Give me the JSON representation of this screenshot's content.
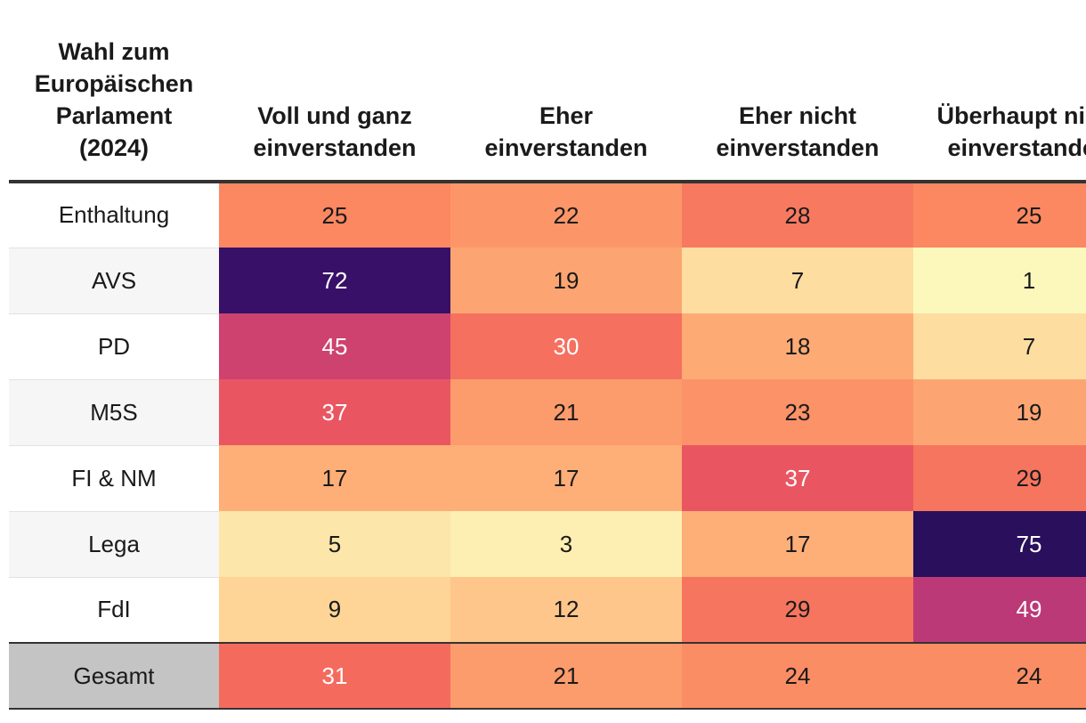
{
  "chart_data": {
    "type": "table",
    "subtype": "heatmap",
    "row_header": "Wahl zum Europäischen Parlament (2024)",
    "columns": [
      "Voll und ganz einverstanden",
      "Eher einverstanden",
      "Eher nicht einverstanden",
      "Überhaupt nicht einverstanden"
    ],
    "rows": [
      {
        "label": "Enthaltung",
        "values": [
          25,
          22,
          28,
          25
        ]
      },
      {
        "label": "AVS",
        "values": [
          72,
          19,
          7,
          1
        ]
      },
      {
        "label": "PD",
        "values": [
          45,
          30,
          18,
          7
        ]
      },
      {
        "label": "M5S",
        "values": [
          37,
          21,
          23,
          19
        ]
      },
      {
        "label": "FI & NM",
        "values": [
          17,
          17,
          37,
          29
        ]
      },
      {
        "label": "Lega",
        "values": [
          5,
          3,
          17,
          75
        ]
      },
      {
        "label": "FdI",
        "values": [
          9,
          12,
          29,
          49
        ]
      },
      {
        "label": "Gesamt",
        "values": [
          31,
          21,
          24,
          24
        ],
        "is_total": true
      }
    ],
    "color_scale": {
      "name": "magma",
      "stops": [
        "#fcfdbf",
        "#fed79a",
        "#feb078",
        "#fb8861",
        "#f1605d",
        "#de4968",
        "#b73779",
        "#8c2981",
        "#51127c",
        "#2a0f5c"
      ],
      "value_range": [
        0,
        75
      ]
    }
  }
}
